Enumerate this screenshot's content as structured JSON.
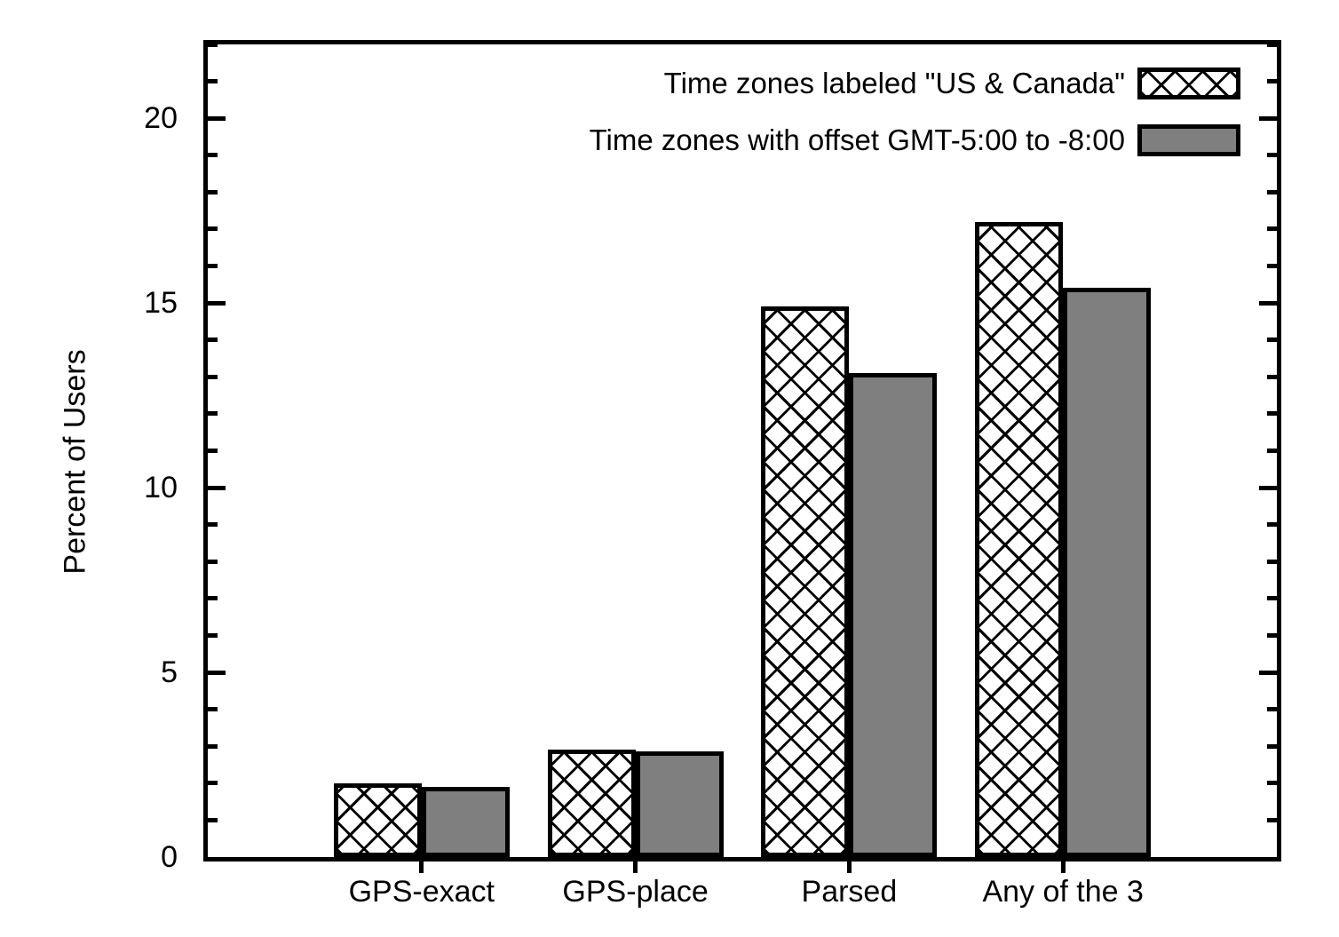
{
  "figure": {
    "background": "#ffffff"
  },
  "chart_data": {
    "type": "bar",
    "title": "",
    "xlabel": "",
    "ylabel": "Percent of Users",
    "categories": [
      "GPS-exact",
      "GPS-place",
      "Parsed",
      "Any of the 3"
    ],
    "series": [
      {
        "name": "Time zones labeled \"US & Canada\"",
        "style": "crosshatch",
        "values": [
          2.0,
          2.9,
          14.9,
          17.2
        ]
      },
      {
        "name": "Time zones with offset GMT-5:00 to -8:00",
        "style": "solid-gray",
        "values": [
          1.9,
          2.85,
          13.1,
          15.4
        ]
      }
    ],
    "ylim": [
      0,
      22
    ],
    "yticks_major": [
      0,
      5,
      10,
      15,
      20
    ],
    "ytick_minor_step": 1,
    "grid": false,
    "legend_position": "top-right-inside",
    "tick_style": {
      "y": "in-mirrored",
      "x": "out-bottom"
    },
    "colors": {
      "background": "#ffffff",
      "axis": "#000000",
      "bar_border": "#000000",
      "gray_fill": "#7f7f7f",
      "hatch_line": "#000000",
      "hatch_bg": "#ffffff",
      "text": "#000000"
    }
  }
}
